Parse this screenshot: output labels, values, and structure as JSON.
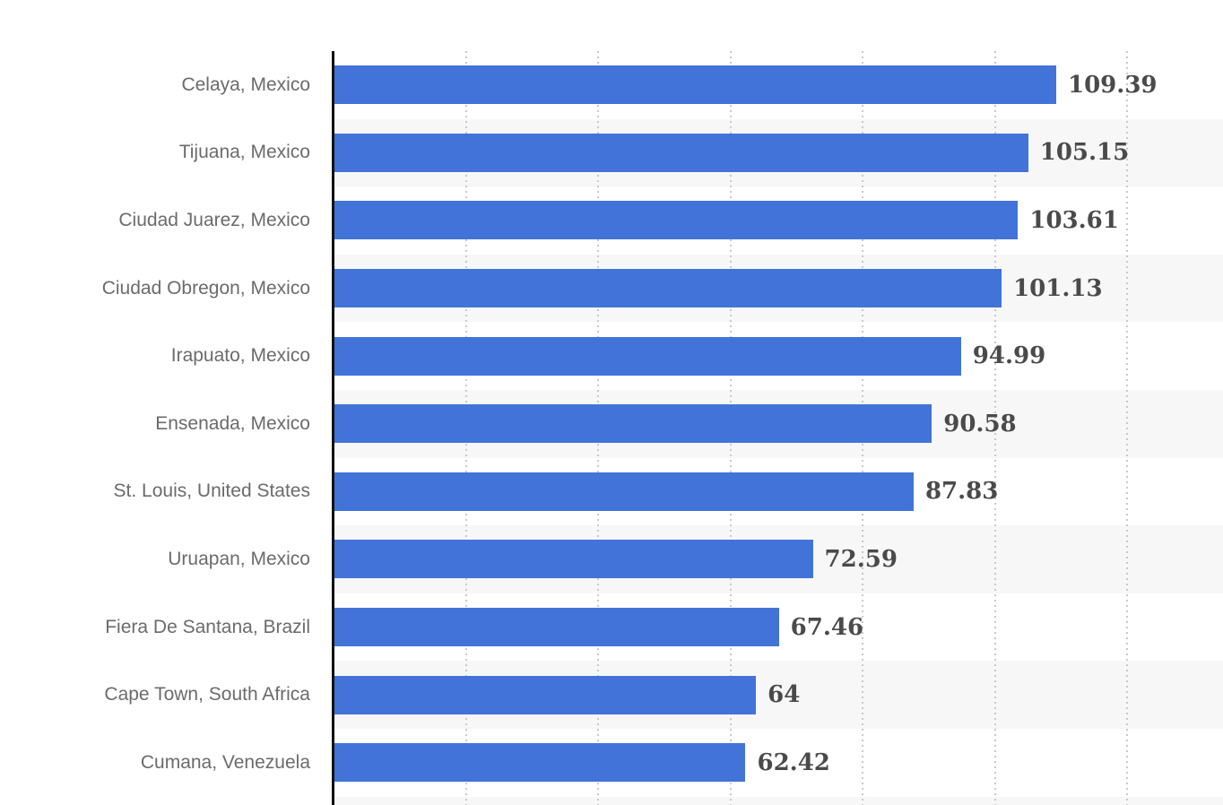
{
  "chart_data": {
    "type": "bar",
    "orientation": "horizontal",
    "title": "",
    "xlabel": "",
    "ylabel": "",
    "categories": [
      "Celaya, Mexico",
      "Tijuana, Mexico",
      "Ciudad Juarez, Mexico",
      "Ciudad Obregon, Mexico",
      "Irapuato, Mexico",
      "Ensenada, Mexico",
      "St. Louis, United States",
      "Uruapan, Mexico",
      "Fiera De Santana, Brazil",
      "Cape Town, South Africa",
      "Cumana, Venezuela"
    ],
    "values": [
      109.39,
      105.15,
      103.61,
      101.13,
      94.99,
      90.58,
      87.83,
      72.59,
      67.46,
      64,
      62.42
    ],
    "xlim": [
      0,
      134.6
    ],
    "grid": true,
    "grid_interval": 20,
    "legend": false,
    "colors": {
      "bar": "#4273d8",
      "band": "#f7f7f7",
      "gridline": "#c9c9c9",
      "axis": "#111111",
      "category_text": "#6b6b6b",
      "value_text": "#4a4a4a"
    }
  }
}
